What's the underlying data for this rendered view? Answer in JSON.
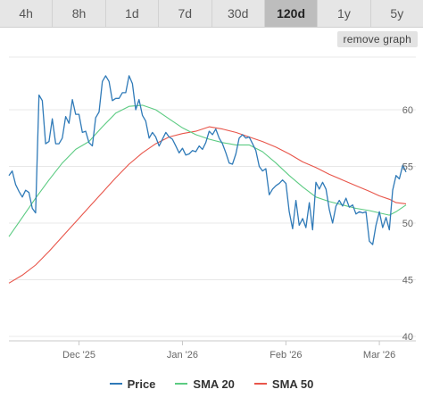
{
  "tabs": [
    {
      "label": "4h",
      "active": false
    },
    {
      "label": "8h",
      "active": false
    },
    {
      "label": "1d",
      "active": false
    },
    {
      "label": "7d",
      "active": false
    },
    {
      "label": "30d",
      "active": false
    },
    {
      "label": "120d",
      "active": true
    },
    {
      "label": "1y",
      "active": false
    },
    {
      "label": "5y",
      "active": false
    }
  ],
  "remove_button": "remove graph",
  "chart_data": {
    "type": "line",
    "title": "",
    "xlabel": "",
    "ylabel": "",
    "ylim": [
      40,
      63
    ],
    "y_ticks": [
      40,
      45,
      50,
      55,
      60
    ],
    "x_ticks": [
      {
        "label": "Dec '25",
        "date": "2025-12-01"
      },
      {
        "label": "Jan '26",
        "date": "2026-01-01"
      },
      {
        "label": "Feb '26",
        "date": "2026-02-01"
      },
      {
        "label": "Mar '26",
        "date": "2026-03-01"
      }
    ],
    "xlim": [
      "2025-11-10",
      "2026-03-09"
    ],
    "grid": true,
    "legend_position": "bottom",
    "series": [
      {
        "name": "Price",
        "color": "#2f7ab8",
        "points": [
          [
            "2025-11-10",
            54.2
          ],
          [
            "2025-11-11",
            54.6
          ],
          [
            "2025-11-12",
            53.4
          ],
          [
            "2025-11-13",
            52.8
          ],
          [
            "2025-11-14",
            52.3
          ],
          [
            "2025-11-15",
            52.9
          ],
          [
            "2025-11-16",
            52.7
          ],
          [
            "2025-11-17",
            51.3
          ],
          [
            "2025-11-18",
            50.9
          ],
          [
            "2025-11-19",
            61.3
          ],
          [
            "2025-11-20",
            60.8
          ],
          [
            "2025-11-21",
            57.0
          ],
          [
            "2025-11-22",
            57.2
          ],
          [
            "2025-11-23",
            59.2
          ],
          [
            "2025-11-24",
            57.0
          ],
          [
            "2025-11-25",
            57.0
          ],
          [
            "2025-11-26",
            57.5
          ],
          [
            "2025-11-27",
            59.4
          ],
          [
            "2025-11-28",
            58.8
          ],
          [
            "2025-11-29",
            60.9
          ],
          [
            "2025-11-30",
            59.6
          ],
          [
            "2025-12-01",
            59.6
          ],
          [
            "2025-12-02",
            58.0
          ],
          [
            "2025-12-03",
            58.1
          ],
          [
            "2025-12-04",
            57.1
          ],
          [
            "2025-12-05",
            56.8
          ],
          [
            "2025-12-06",
            59.3
          ],
          [
            "2025-12-07",
            59.8
          ],
          [
            "2025-12-08",
            62.5
          ],
          [
            "2025-12-09",
            63.0
          ],
          [
            "2025-12-10",
            62.5
          ],
          [
            "2025-12-11",
            60.8
          ],
          [
            "2025-12-12",
            61.0
          ],
          [
            "2025-12-13",
            61.0
          ],
          [
            "2025-12-14",
            61.5
          ],
          [
            "2025-12-15",
            61.5
          ],
          [
            "2025-12-16",
            63.0
          ],
          [
            "2025-12-17",
            62.3
          ],
          [
            "2025-12-18",
            60.0
          ],
          [
            "2025-12-19",
            60.9
          ],
          [
            "2025-12-20",
            59.5
          ],
          [
            "2025-12-21",
            59.0
          ],
          [
            "2025-12-22",
            57.5
          ],
          [
            "2025-12-23",
            58.0
          ],
          [
            "2025-12-24",
            57.6
          ],
          [
            "2025-12-25",
            56.8
          ],
          [
            "2025-12-26",
            57.4
          ],
          [
            "2025-12-27",
            58.0
          ],
          [
            "2025-12-28",
            57.6
          ],
          [
            "2025-12-29",
            57.4
          ],
          [
            "2025-12-30",
            56.8
          ],
          [
            "2025-12-31",
            56.2
          ],
          [
            "2026-01-01",
            56.6
          ],
          [
            "2026-01-02",
            56.0
          ],
          [
            "2026-01-03",
            56.1
          ],
          [
            "2026-01-04",
            56.4
          ],
          [
            "2026-01-05",
            56.3
          ],
          [
            "2026-01-06",
            56.8
          ],
          [
            "2026-01-07",
            56.5
          ],
          [
            "2026-01-08",
            57.1
          ],
          [
            "2026-01-09",
            58.1
          ],
          [
            "2026-01-10",
            57.8
          ],
          [
            "2026-01-11",
            58.3
          ],
          [
            "2026-01-12",
            57.5
          ],
          [
            "2026-01-13",
            57.0
          ],
          [
            "2026-01-14",
            56.2
          ],
          [
            "2026-01-15",
            55.3
          ],
          [
            "2026-01-16",
            55.2
          ],
          [
            "2026-01-17",
            56.1
          ],
          [
            "2026-01-18",
            57.5
          ],
          [
            "2026-01-19",
            57.8
          ],
          [
            "2026-01-20",
            57.5
          ],
          [
            "2026-01-21",
            57.6
          ],
          [
            "2026-01-22",
            57.0
          ],
          [
            "2026-01-23",
            56.4
          ],
          [
            "2026-01-24",
            55.0
          ],
          [
            "2026-01-25",
            54.6
          ],
          [
            "2026-01-26",
            54.8
          ],
          [
            "2026-01-27",
            52.5
          ],
          [
            "2026-01-28",
            53.0
          ],
          [
            "2026-01-29",
            53.3
          ],
          [
            "2026-01-30",
            53.5
          ],
          [
            "2026-01-31",
            53.8
          ],
          [
            "2026-02-01",
            53.5
          ],
          [
            "2026-02-02",
            51.0
          ],
          [
            "2026-02-03",
            49.5
          ],
          [
            "2026-02-04",
            52.0
          ],
          [
            "2026-02-05",
            49.8
          ],
          [
            "2026-02-06",
            50.4
          ],
          [
            "2026-02-07",
            49.6
          ],
          [
            "2026-02-08",
            51.8
          ],
          [
            "2026-02-09",
            49.4
          ],
          [
            "2026-02-10",
            53.6
          ],
          [
            "2026-02-11",
            53.0
          ],
          [
            "2026-02-12",
            53.6
          ],
          [
            "2026-02-13",
            53.0
          ],
          [
            "2026-02-14",
            51.2
          ],
          [
            "2026-02-15",
            50.0
          ],
          [
            "2026-02-16",
            51.5
          ],
          [
            "2026-02-17",
            52.0
          ],
          [
            "2026-02-18",
            51.5
          ],
          [
            "2026-02-19",
            52.2
          ],
          [
            "2026-02-20",
            51.4
          ],
          [
            "2026-02-21",
            51.6
          ],
          [
            "2026-02-22",
            50.8
          ],
          [
            "2026-02-23",
            51.0
          ],
          [
            "2026-02-24",
            50.9
          ],
          [
            "2026-02-25",
            51.0
          ],
          [
            "2026-02-26",
            48.4
          ],
          [
            "2026-02-27",
            48.1
          ],
          [
            "2026-02-28",
            49.8
          ],
          [
            "2026-03-01",
            51.0
          ],
          [
            "2026-03-02",
            49.6
          ],
          [
            "2026-03-03",
            50.5
          ],
          [
            "2026-03-04",
            49.4
          ],
          [
            "2026-03-05",
            52.9
          ],
          [
            "2026-03-06",
            54.2
          ],
          [
            "2026-03-07",
            53.9
          ],
          [
            "2026-03-08",
            55.1
          ],
          [
            "2026-03-09",
            54.5
          ]
        ]
      },
      {
        "name": "SMA 20",
        "color": "#5ccb82",
        "points": [
          [
            "2025-11-10",
            48.8
          ],
          [
            "2025-11-14",
            50.5
          ],
          [
            "2025-11-18",
            52.2
          ],
          [
            "2025-11-22",
            53.8
          ],
          [
            "2025-11-26",
            55.3
          ],
          [
            "2025-11-30",
            56.5
          ],
          [
            "2025-12-04",
            57.2
          ],
          [
            "2025-12-08",
            58.5
          ],
          [
            "2025-12-12",
            59.7
          ],
          [
            "2025-12-16",
            60.3
          ],
          [
            "2025-12-20",
            60.4
          ],
          [
            "2025-12-24",
            60.0
          ],
          [
            "2025-12-28",
            59.2
          ],
          [
            "2026-01-01",
            58.4
          ],
          [
            "2026-01-05",
            57.8
          ],
          [
            "2026-01-09",
            57.4
          ],
          [
            "2026-01-13",
            57.1
          ],
          [
            "2026-01-17",
            56.9
          ],
          [
            "2026-01-21",
            56.9
          ],
          [
            "2026-01-25",
            56.3
          ],
          [
            "2026-01-29",
            55.3
          ],
          [
            "2026-02-02",
            54.2
          ],
          [
            "2026-02-06",
            53.2
          ],
          [
            "2026-02-10",
            52.3
          ],
          [
            "2026-02-14",
            51.9
          ],
          [
            "2026-02-18",
            51.6
          ],
          [
            "2026-02-22",
            51.3
          ],
          [
            "2026-02-26",
            51.1
          ],
          [
            "2026-03-01",
            50.9
          ],
          [
            "2026-03-04",
            50.7
          ],
          [
            "2026-03-06",
            51.0
          ],
          [
            "2026-03-09",
            51.6
          ]
        ]
      },
      {
        "name": "SMA 50",
        "color": "#e8554a",
        "points": [
          [
            "2025-11-10",
            44.7
          ],
          [
            "2025-11-14",
            45.4
          ],
          [
            "2025-11-18",
            46.3
          ],
          [
            "2025-11-22",
            47.5
          ],
          [
            "2025-11-26",
            48.8
          ],
          [
            "2025-11-30",
            50.1
          ],
          [
            "2025-12-04",
            51.4
          ],
          [
            "2025-12-08",
            52.7
          ],
          [
            "2025-12-12",
            54.0
          ],
          [
            "2025-12-16",
            55.2
          ],
          [
            "2025-12-20",
            56.2
          ],
          [
            "2025-12-24",
            57.0
          ],
          [
            "2025-12-28",
            57.6
          ],
          [
            "2026-01-01",
            57.9
          ],
          [
            "2026-01-05",
            58.1
          ],
          [
            "2026-01-09",
            58.5
          ],
          [
            "2026-01-13",
            58.3
          ],
          [
            "2026-01-17",
            58.0
          ],
          [
            "2026-01-21",
            57.6
          ],
          [
            "2026-01-25",
            57.2
          ],
          [
            "2026-01-29",
            56.7
          ],
          [
            "2026-02-02",
            56.1
          ],
          [
            "2026-02-06",
            55.4
          ],
          [
            "2026-02-10",
            54.9
          ],
          [
            "2026-02-14",
            54.3
          ],
          [
            "2026-02-18",
            53.8
          ],
          [
            "2026-02-22",
            53.3
          ],
          [
            "2026-02-26",
            52.8
          ],
          [
            "2026-03-01",
            52.4
          ],
          [
            "2026-03-04",
            52.1
          ],
          [
            "2026-03-06",
            51.8
          ],
          [
            "2026-03-09",
            51.7
          ]
        ]
      }
    ]
  }
}
